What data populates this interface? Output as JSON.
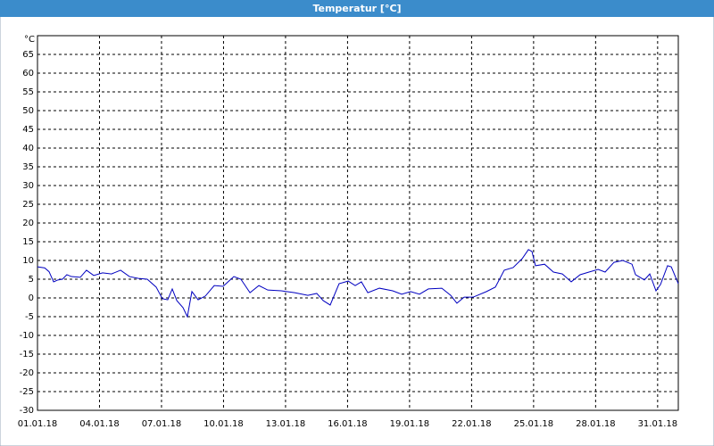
{
  "chart_data": {
    "type": "line",
    "title": "Temperatur [°C]",
    "ylabel": "°C",
    "xlim": [
      0,
      31
    ],
    "ylim": [
      -30,
      70
    ],
    "xticks": [
      {
        "value": 0,
        "label": "01.01.18"
      },
      {
        "value": 3,
        "label": "04.01.18"
      },
      {
        "value": 6,
        "label": "07.01.18"
      },
      {
        "value": 9,
        "label": "10.01.18"
      },
      {
        "value": 12,
        "label": "13.01.18"
      },
      {
        "value": 15,
        "label": "16.01.18"
      },
      {
        "value": 18,
        "label": "19.01.18"
      },
      {
        "value": 21,
        "label": "22.01.18"
      },
      {
        "value": 24,
        "label": "25.01.18"
      },
      {
        "value": 27,
        "label": "28.01.18"
      },
      {
        "value": 30,
        "label": "31.01.18"
      }
    ],
    "yticks": [
      -30,
      -25,
      -20,
      -15,
      -10,
      -5,
      0,
      5,
      10,
      15,
      20,
      25,
      30,
      35,
      40,
      45,
      50,
      55,
      60,
      65
    ],
    "grid": true,
    "series": [
      {
        "color": "#0000c0",
        "x": [
          0,
          0.35,
          0.56,
          0.78,
          0.99,
          1.21,
          1.42,
          1.64,
          2.07,
          2.37,
          2.72,
          3.15,
          3.58,
          4.02,
          4.45,
          4.88,
          5.31,
          5.74,
          6.04,
          6.3,
          6.52,
          6.74,
          7.04,
          7.25,
          7.47,
          7.77,
          8.12,
          8.55,
          8.98,
          9.5,
          9.84,
          10.28,
          10.71,
          11.14,
          11.79,
          12.44,
          13.08,
          13.51,
          13.82,
          14.16,
          14.59,
          15.03,
          15.37,
          15.67,
          15.98,
          16.54,
          17.18,
          17.62,
          18.05,
          18.48,
          18.91,
          19.56,
          19.99,
          20.29,
          20.64,
          21.07,
          21.72,
          22.15,
          22.58,
          23.01,
          23.45,
          23.75,
          23.92,
          24.09,
          24.53,
          24.96,
          25.39,
          25.82,
          26.25,
          26.68,
          27.12,
          27.46,
          27.89,
          28.32,
          28.76,
          28.93,
          29.36,
          29.62,
          29.92,
          30.14,
          30.48,
          30.66,
          31.0
        ],
        "values": [
          8.3,
          8,
          7,
          4.3,
          4.8,
          5,
          6.2,
          5.7,
          5.5,
          7.4,
          6,
          6.7,
          6.4,
          7.4,
          5.7,
          5.2,
          5,
          2.9,
          -0.2,
          -0.5,
          2.4,
          -0.7,
          -2.6,
          -5,
          1.7,
          -0.5,
          0.5,
          3.3,
          3.1,
          5.7,
          5,
          1.4,
          3.3,
          2.1,
          1.9,
          1.4,
          0.7,
          1.2,
          -0.7,
          -1.9,
          3.8,
          4.5,
          3.3,
          4.3,
          1.4,
          2.6,
          1.9,
          1,
          1.7,
          1,
          2.4,
          2.6,
          0.7,
          -1.4,
          0.2,
          0.2,
          1.7,
          2.9,
          7.4,
          8.1,
          10.5,
          12.9,
          12.4,
          8.6,
          9,
          6.9,
          6.4,
          4.3,
          6.2,
          6.9,
          7.6,
          6.9,
          9.5,
          10,
          9,
          6.2,
          4.8,
          6.4,
          1.9,
          3.6,
          8.6,
          8.3,
          3.8
        ]
      }
    ]
  }
}
